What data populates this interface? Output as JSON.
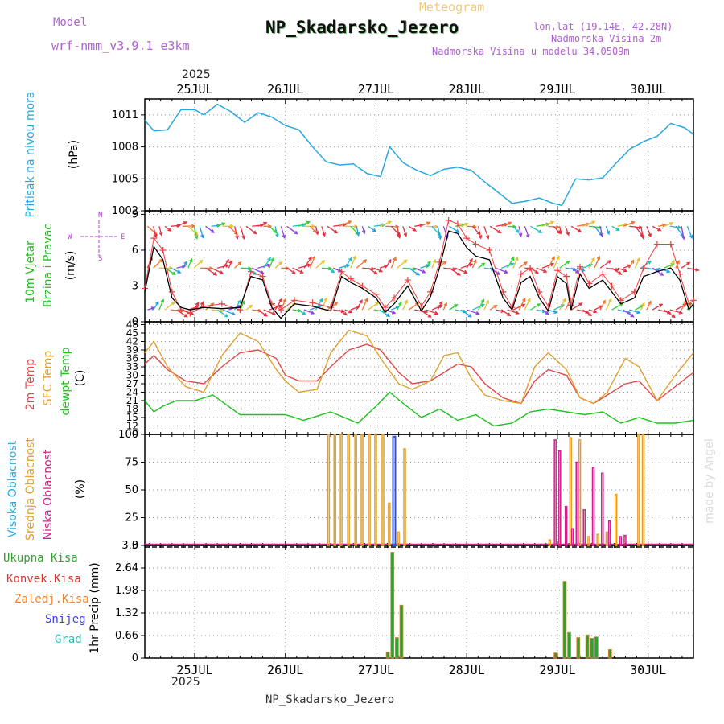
{
  "header": {
    "title": "NP_Skadarsko_Jezero",
    "subtitle": "Meteogram",
    "model_label": "Model",
    "model_name": "wrf-nmm_v3.9.1 e3km",
    "coords": "lon,lat (19.14E, 42.28N)",
    "altitude": "Nadmorska Visina 2m",
    "model_altitude": "Nadmorska Visina u modelu 34.0509m",
    "footer": "NP_Skadarsko_Jezero",
    "watermark": "made by Angel",
    "year": "2025"
  },
  "colors": {
    "pressure": "#29a8e0",
    "wind_obs": "#e84040",
    "wind_model": "#000000",
    "temp2m": "#e04848",
    "sfc": "#e0a030",
    "dew": "#20c020",
    "cloud_high": "#3050d0",
    "cloud_mid": "#e0a030",
    "cloud_low": "#d0208a",
    "precip_total": "#30a030",
    "precip_conv": "#e03030",
    "precip_frz": "#f08030",
    "snow": "#4040e0",
    "hail": "#20c0c0",
    "grid": "#999999"
  },
  "chart_data": [
    {
      "type": "line",
      "panel": "pressure",
      "ylabel_side": "Pritisak na nivou mora",
      "ylabel": "(hPa)",
      "ylim": [
        1002,
        1012.5
      ],
      "yticks": [
        1002,
        1005,
        1008,
        1011
      ],
      "x_day_ticks": [
        "25JUL",
        "26JUL",
        "27JUL",
        "28JUL",
        "29JUL",
        "30JUL"
      ],
      "xlim_days": [
        -0.55,
        5.5
      ],
      "series": [
        {
          "name": "MSLP",
          "x": [
            -0.55,
            -0.45,
            -0.3,
            -0.15,
            0,
            0.1,
            0.25,
            0.4,
            0.55,
            0.7,
            0.85,
            1.0,
            1.15,
            1.3,
            1.45,
            1.6,
            1.75,
            1.9,
            2.05,
            2.15,
            2.3,
            2.45,
            2.6,
            2.75,
            2.9,
            3.05,
            3.2,
            3.35,
            3.5,
            3.65,
            3.8,
            3.95,
            4.05,
            4.2,
            4.35,
            4.5,
            4.65,
            4.8,
            4.95,
            5.1,
            5.25,
            5.4,
            5.5
          ],
          "values": [
            1010.5,
            1009.5,
            1009.6,
            1011.5,
            1011.5,
            1011.0,
            1012.0,
            1011.3,
            1010.3,
            1011.2,
            1010.8,
            1010.0,
            1009.6,
            1008.0,
            1006.6,
            1006.3,
            1006.4,
            1005.5,
            1005.2,
            1008.0,
            1006.5,
            1005.8,
            1005.3,
            1005.9,
            1006.1,
            1005.8,
            1004.7,
            1003.7,
            1002.7,
            1002.9,
            1003.2,
            1002.7,
            1002.5,
            1005.0,
            1004.9,
            1005.1,
            1006.5,
            1007.8,
            1008.5,
            1009.0,
            1010.2,
            1009.8,
            1009.2
          ]
        }
      ]
    },
    {
      "type": "line",
      "panel": "wind",
      "ylabel_side": "10m Vjetar Brzina i Pravac",
      "ylabel": "(m/s)",
      "ylim": [
        0,
        9.3
      ],
      "yticks": [
        0,
        3,
        6,
        9
      ],
      "series": [
        {
          "name": "Brzina model",
          "x": [
            -0.55,
            -0.45,
            -0.35,
            -0.25,
            -0.15,
            -0.05,
            0.1,
            0.3,
            0.5,
            0.62,
            0.75,
            0.85,
            0.95,
            1.1,
            1.3,
            1.5,
            1.62,
            1.72,
            1.85,
            2.0,
            2.1,
            2.2,
            2.35,
            2.5,
            2.6,
            2.7,
            2.8,
            2.9,
            3.0,
            3.1,
            3.25,
            3.4,
            3.5,
            3.6,
            3.7,
            3.8,
            3.9,
            4.0,
            4.1,
            4.15,
            4.25,
            4.35,
            4.5,
            4.6,
            4.7,
            4.85,
            4.95,
            5.1,
            5.25,
            5.35,
            5.45,
            5.5
          ],
          "values": [
            2.5,
            6.3,
            5.2,
            2.0,
            1.2,
            1.0,
            1.2,
            1.1,
            1.2,
            3.8,
            3.5,
            1.2,
            0.3,
            1.5,
            1.3,
            0.9,
            3.8,
            3.3,
            2.8,
            2.0,
            0.8,
            1.5,
            3.0,
            0.9,
            2.1,
            4.5,
            7.6,
            7.4,
            6.2,
            5.5,
            5.2,
            2.0,
            1.0,
            3.3,
            3.8,
            2.0,
            0.9,
            3.8,
            3.2,
            1.0,
            4.0,
            2.8,
            3.5,
            2.5,
            1.5,
            2.0,
            3.8,
            4.2,
            4.5,
            3.5,
            1.0,
            1.5
          ]
        },
        {
          "name": "Udari",
          "x": [
            -0.55,
            -0.45,
            -0.35,
            -0.25,
            -0.15,
            -0.05,
            0.1,
            0.3,
            0.5,
            0.62,
            0.75,
            0.85,
            0.95,
            1.1,
            1.3,
            1.5,
            1.62,
            1.72,
            1.85,
            2.0,
            2.1,
            2.2,
            2.35,
            2.5,
            2.6,
            2.7,
            2.8,
            2.9,
            3.0,
            3.1,
            3.25,
            3.4,
            3.5,
            3.6,
            3.7,
            3.8,
            3.9,
            4.0,
            4.1,
            4.15,
            4.25,
            4.35,
            4.5,
            4.6,
            4.7,
            4.85,
            4.95,
            5.1,
            5.25,
            5.35,
            5.45,
            5.5
          ],
          "values": [
            2.8,
            7.0,
            6.0,
            2.5,
            1.0,
            0.7,
            1.3,
            1.5,
            1.0,
            4.2,
            3.8,
            1.5,
            1.0,
            1.8,
            1.6,
            1.2,
            4.2,
            3.6,
            3.0,
            2.3,
            1.2,
            2.0,
            3.5,
            1.3,
            2.5,
            5.0,
            8.5,
            8.2,
            7.0,
            6.5,
            6.0,
            2.5,
            1.2,
            4.0,
            4.5,
            2.5,
            1.3,
            4.3,
            3.8,
            1.4,
            4.6,
            3.2,
            4.0,
            3.0,
            1.8,
            2.5,
            4.5,
            6.5,
            6.5,
            4.0,
            1.5,
            1.8
          ]
        }
      ],
      "direction_rows": [
        1,
        4.5,
        8
      ],
      "direction_legend": [
        "N",
        "E",
        "W",
        "S"
      ]
    },
    {
      "type": "line",
      "panel": "temperature",
      "ylabel_side": [
        "2m Temp",
        "SFC Temp",
        "dewpt Temp"
      ],
      "ylabel": "(C)",
      "ylim": [
        9,
        49
      ],
      "yticks": [
        9,
        12,
        15,
        18,
        21,
        24,
        27,
        30,
        33,
        36,
        39,
        42,
        45,
        48
      ],
      "series": [
        {
          "name": "2m Temp",
          "x": [
            -0.55,
            -0.45,
            -0.3,
            -0.1,
            0.1,
            0.3,
            0.5,
            0.7,
            0.9,
            1.0,
            1.15,
            1.35,
            1.5,
            1.7,
            1.9,
            2.05,
            2.25,
            2.4,
            2.6,
            2.75,
            2.9,
            3.05,
            3.2,
            3.4,
            3.6,
            3.75,
            3.9,
            4.1,
            4.25,
            4.4,
            4.55,
            4.75,
            4.9,
            5.1,
            5.3,
            5.5
          ],
          "values": [
            34,
            37,
            32,
            28,
            27,
            33,
            38,
            39,
            36,
            30,
            28,
            28,
            33,
            39,
            41,
            39,
            31,
            27,
            28,
            31,
            34,
            33,
            27,
            22,
            20,
            28,
            32,
            30,
            22,
            20,
            23,
            27,
            28,
            21,
            26,
            31
          ]
        },
        {
          "name": "SFC Temp",
          "x": [
            -0.55,
            -0.45,
            -0.3,
            -0.1,
            0.1,
            0.3,
            0.5,
            0.7,
            0.9,
            1.0,
            1.15,
            1.35,
            1.5,
            1.7,
            1.9,
            2.05,
            2.25,
            2.4,
            2.6,
            2.75,
            2.9,
            3.05,
            3.2,
            3.4,
            3.6,
            3.75,
            3.9,
            4.1,
            4.25,
            4.4,
            4.55,
            4.75,
            4.9,
            5.1,
            5.3,
            5.5
          ],
          "values": [
            38,
            42,
            33,
            26,
            24,
            37,
            45,
            42,
            32,
            28,
            24,
            25,
            38,
            46,
            44,
            36,
            27,
            25,
            28,
            37,
            38,
            29,
            23,
            21,
            20,
            33,
            38,
            32,
            22,
            20,
            24,
            36,
            33,
            21,
            30,
            38
          ]
        },
        {
          "name": "dewpt Temp",
          "x": [
            -0.55,
            -0.45,
            -0.35,
            -0.2,
            0,
            0.2,
            0.5,
            0.8,
            1.0,
            1.2,
            1.5,
            1.8,
            2.0,
            2.15,
            2.3,
            2.5,
            2.7,
            2.9,
            3.1,
            3.3,
            3.5,
            3.7,
            3.9,
            4.1,
            4.3,
            4.5,
            4.7,
            4.9,
            5.1,
            5.3,
            5.5
          ],
          "values": [
            21,
            17,
            19,
            21,
            21,
            23,
            16,
            16,
            16,
            14,
            17,
            13,
            19,
            24,
            20,
            15,
            18,
            14,
            16,
            12,
            13,
            17,
            18,
            17,
            16,
            17,
            13,
            15,
            13,
            13,
            14
          ]
        }
      ]
    },
    {
      "type": "bar",
      "panel": "clouds",
      "ylabel_side": [
        "Visoka Oblacnost",
        "Srednja Oblacnost",
        "Niska Oblacnost"
      ],
      "ylabel": "(%)",
      "ylim": [
        0,
        100
      ],
      "yticks": [
        0,
        25,
        50,
        75,
        100
      ],
      "series": [
        {
          "name": "Visoka",
          "x": [
            2.2
          ],
          "values": [
            98
          ]
        },
        {
          "name": "Srednja",
          "x": [
            1.48,
            1.55,
            1.62,
            1.7,
            1.78,
            1.85,
            1.93,
            2.0,
            2.08,
            2.15,
            2.25,
            2.32,
            3.92,
            4.15,
            4.25,
            4.35,
            4.45,
            4.55,
            4.65,
            4.9,
            4.95
          ],
          "values": [
            100,
            100,
            100,
            100,
            100,
            100,
            100,
            100,
            100,
            38,
            12,
            87,
            5,
            97,
            95,
            8,
            10,
            12,
            46,
            100,
            100
          ]
        },
        {
          "name": "Niska",
          "x": [
            3.98,
            4.03,
            4.1,
            4.17,
            4.22,
            4.3,
            4.4,
            4.5,
            4.58,
            4.7,
            4.75
          ],
          "values": [
            95,
            85,
            35,
            15,
            75,
            32,
            70,
            65,
            22,
            8,
            9
          ]
        }
      ]
    },
    {
      "type": "bar",
      "panel": "precip",
      "ylabel_side": [
        "Ukupna Kisa",
        "Konvek.Kisa",
        "Zaledj.Kisa",
        "Snijeg",
        "Grad"
      ],
      "ylabel": "1hr Precip (mm)",
      "ylim": [
        0,
        3.3
      ],
      "yticks": [
        0,
        0.66,
        1.32,
        1.98,
        2.64,
        3.3
      ],
      "series": [
        {
          "name": "Ukupna Kisa",
          "x": [
            2.13,
            2.18,
            2.23,
            2.28,
            3.98,
            4.08,
            4.13,
            4.23,
            4.33,
            4.38,
            4.43,
            4.58
          ],
          "values": [
            0.18,
            3.1,
            0.6,
            1.55,
            0.15,
            2.25,
            0.75,
            0.6,
            0.68,
            0.58,
            0.62,
            0.25
          ]
        }
      ]
    }
  ]
}
